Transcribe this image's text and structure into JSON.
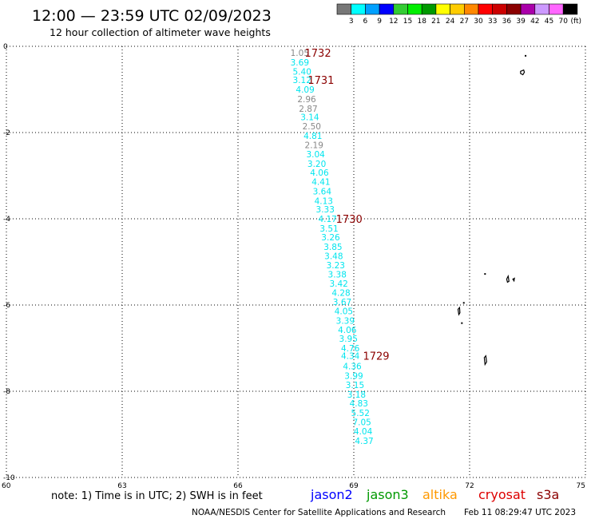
{
  "header": {
    "title": "12:00 — 23:59 UTC 02/09/2023",
    "subtitle": "12 hour collection of altimeter wave heights"
  },
  "legend": {
    "unit": "(ft)",
    "bins": [
      {
        "label": "3",
        "color": "#777777"
      },
      {
        "label": "6",
        "color": "#00ffff"
      },
      {
        "label": "9",
        "color": "#00a0ff"
      },
      {
        "label": "12",
        "color": "#0000ff"
      },
      {
        "label": "15",
        "color": "#33cc33"
      },
      {
        "label": "18",
        "color": "#00ee00"
      },
      {
        "label": "21",
        "color": "#009900"
      },
      {
        "label": "24",
        "color": "#ffff00"
      },
      {
        "label": "27",
        "color": "#ffcc00"
      },
      {
        "label": "30",
        "color": "#ff8800"
      },
      {
        "label": "33",
        "color": "#ff0000"
      },
      {
        "label": "36",
        "color": "#cc0000"
      },
      {
        "label": "39",
        "color": "#8b0000"
      },
      {
        "label": "42",
        "color": "#aa00aa"
      },
      {
        "label": "45",
        "color": "#cc99ff"
      },
      {
        "label": "70",
        "color": "#ff66ff"
      },
      {
        "label": "",
        "color": "#000000"
      }
    ]
  },
  "axes": {
    "lon_min": 60,
    "lon_max": 75,
    "lat_min": -10,
    "lat_max": 0,
    "x_ticks": [
      "60",
      "63",
      "66",
      "69",
      "72",
      "75"
    ],
    "y_ticks": [
      "0",
      "-2",
      "-4",
      "-6",
      "-8",
      "-10"
    ]
  },
  "track": {
    "points": [
      {
        "lon": 67.6,
        "lat": -0.15,
        "value": "1.05",
        "color": "#888888"
      },
      {
        "lon": 67.6,
        "lat": -0.37,
        "value": "3.69",
        "color": "#00e5ee"
      },
      {
        "lon": 67.66,
        "lat": -0.58,
        "value": "5.40",
        "color": "#00e5ee"
      },
      {
        "lon": 67.66,
        "lat": -0.78,
        "value": "3.12",
        "color": "#00e5ee"
      },
      {
        "lon": 67.74,
        "lat": -1.0,
        "value": "4.09",
        "color": "#00e5ee"
      },
      {
        "lon": 67.78,
        "lat": -1.22,
        "value": "2.96",
        "color": "#888888"
      },
      {
        "lon": 67.82,
        "lat": -1.44,
        "value": "2.87",
        "color": "#888888"
      },
      {
        "lon": 67.86,
        "lat": -1.64,
        "value": "3.14",
        "color": "#00e5ee"
      },
      {
        "lon": 67.91,
        "lat": -1.85,
        "value": "2.50",
        "color": "#888888"
      },
      {
        "lon": 67.94,
        "lat": -2.07,
        "value": "4.81",
        "color": "#00e5ee"
      },
      {
        "lon": 67.97,
        "lat": -2.29,
        "value": "2.19",
        "color": "#888888"
      },
      {
        "lon": 68.01,
        "lat": -2.5,
        "value": "3.04",
        "color": "#00e5ee"
      },
      {
        "lon": 68.04,
        "lat": -2.72,
        "value": "3.20",
        "color": "#00e5ee"
      },
      {
        "lon": 68.11,
        "lat": -2.93,
        "value": "4.06",
        "color": "#00e5ee"
      },
      {
        "lon": 68.15,
        "lat": -3.14,
        "value": "4.41",
        "color": "#00e5ee"
      },
      {
        "lon": 68.18,
        "lat": -3.36,
        "value": "3.64",
        "color": "#00e5ee"
      },
      {
        "lon": 68.22,
        "lat": -3.58,
        "value": "4.13",
        "color": "#00e5ee"
      },
      {
        "lon": 68.26,
        "lat": -3.78,
        "value": "3.33",
        "color": "#00e5ee"
      },
      {
        "lon": 68.32,
        "lat": -4.0,
        "value": "4.17",
        "color": "#00e5ee"
      },
      {
        "lon": 68.36,
        "lat": -4.22,
        "value": "3.51",
        "color": "#00e5ee"
      },
      {
        "lon": 68.4,
        "lat": -4.43,
        "value": "3.26",
        "color": "#00e5ee"
      },
      {
        "lon": 68.46,
        "lat": -4.65,
        "value": "3.85",
        "color": "#00e5ee"
      },
      {
        "lon": 68.48,
        "lat": -4.86,
        "value": "3.48",
        "color": "#00e5ee"
      },
      {
        "lon": 68.53,
        "lat": -5.07,
        "value": "3.23",
        "color": "#00e5ee"
      },
      {
        "lon": 68.57,
        "lat": -5.29,
        "value": "3.38",
        "color": "#00e5ee"
      },
      {
        "lon": 68.61,
        "lat": -5.5,
        "value": "3.42",
        "color": "#00e5ee"
      },
      {
        "lon": 68.67,
        "lat": -5.71,
        "value": "4.28",
        "color": "#00e5ee"
      },
      {
        "lon": 68.7,
        "lat": -5.93,
        "value": "3.67",
        "color": "#00e5ee"
      },
      {
        "lon": 68.74,
        "lat": -6.14,
        "value": "4.05",
        "color": "#00e5ee"
      },
      {
        "lon": 68.78,
        "lat": -6.36,
        "value": "3.39",
        "color": "#00e5ee"
      },
      {
        "lon": 68.83,
        "lat": -6.57,
        "value": "4.06",
        "color": "#00e5ee"
      },
      {
        "lon": 68.86,
        "lat": -6.78,
        "value": "3.95",
        "color": "#00e5ee"
      },
      {
        "lon": 68.91,
        "lat": -7.0,
        "value": "4.76",
        "color": "#00e5ee"
      },
      {
        "lon": 68.91,
        "lat": -7.18,
        "value": "4.34",
        "color": "#00e5ee"
      },
      {
        "lon": 68.96,
        "lat": -7.42,
        "value": "4.36",
        "color": "#00e5ee"
      },
      {
        "lon": 69.0,
        "lat": -7.64,
        "value": "3.99",
        "color": "#00e5ee"
      },
      {
        "lon": 69.03,
        "lat": -7.85,
        "value": "3.15",
        "color": "#00e5ee"
      },
      {
        "lon": 69.07,
        "lat": -8.07,
        "value": "3.18",
        "color": "#00e5ee"
      },
      {
        "lon": 69.13,
        "lat": -8.28,
        "value": "4.83",
        "color": "#00e5ee"
      },
      {
        "lon": 69.17,
        "lat": -8.5,
        "value": "5.52",
        "color": "#00e5ee"
      },
      {
        "lon": 69.21,
        "lat": -8.71,
        "value": "7.05",
        "color": "#00e5ee"
      },
      {
        "lon": 69.24,
        "lat": -8.93,
        "value": "4.04",
        "color": "#00e5ee"
      },
      {
        "lon": 69.27,
        "lat": -9.15,
        "value": "4.37",
        "color": "#00e5ee"
      }
    ],
    "time_labels": [
      {
        "lon": 68.07,
        "lat": -0.15,
        "text": "1732",
        "color": "#8b0000"
      },
      {
        "lon": 68.15,
        "lat": -0.78,
        "text": "1731",
        "color": "#8b0000"
      },
      {
        "lon": 68.88,
        "lat": -4.0,
        "text": "1730",
        "color": "#8b0000"
      },
      {
        "lon": 69.58,
        "lat": -7.18,
        "text": "1729",
        "color": "#8b0000"
      }
    ]
  },
  "islands": [
    [
      [
        73.32,
        -0.58
      ],
      [
        73.4,
        -0.55
      ],
      [
        73.42,
        -0.6
      ],
      [
        73.38,
        -0.66
      ],
      [
        73.32,
        -0.63
      ]
    ],
    [
      [
        72.96,
        -5.4
      ],
      [
        73.0,
        -5.33
      ],
      [
        73.02,
        -5.45
      ],
      [
        72.98,
        -5.47
      ]
    ],
    [
      [
        73.12,
        -5.4
      ],
      [
        73.16,
        -5.38
      ],
      [
        73.15,
        -5.44
      ]
    ],
    [
      [
        71.7,
        -6.1
      ],
      [
        71.74,
        -6.06
      ],
      [
        71.75,
        -6.18
      ],
      [
        71.72,
        -6.22
      ]
    ],
    [
      [
        72.38,
        -7.22
      ],
      [
        72.42,
        -7.18
      ],
      [
        72.44,
        -7.32
      ],
      [
        72.4,
        -7.38
      ]
    ]
  ],
  "islets": [
    [
      73.45,
      -0.22
    ],
    [
      71.85,
      -5.95
    ],
    [
      71.8,
      -6.42
    ],
    [
      72.4,
      -5.28
    ]
  ],
  "footer": {
    "note": "note:  1) Time is in UTC; 2) SWH is in feet",
    "satellites": [
      {
        "name": "jason2",
        "color": "#0000ff"
      },
      {
        "name": "jason3",
        "color": "#009900"
      },
      {
        "name": "altika",
        "color": "#ff9900"
      },
      {
        "name": "cryosat",
        "color": "#dd0000"
      },
      {
        "name": "s3a",
        "color": "#8b0000"
      }
    ],
    "credit": "NOAA/NESDIS Center for Satellite Applications and Research",
    "generated": "Feb 11 08:29:47 UTC 2023"
  }
}
